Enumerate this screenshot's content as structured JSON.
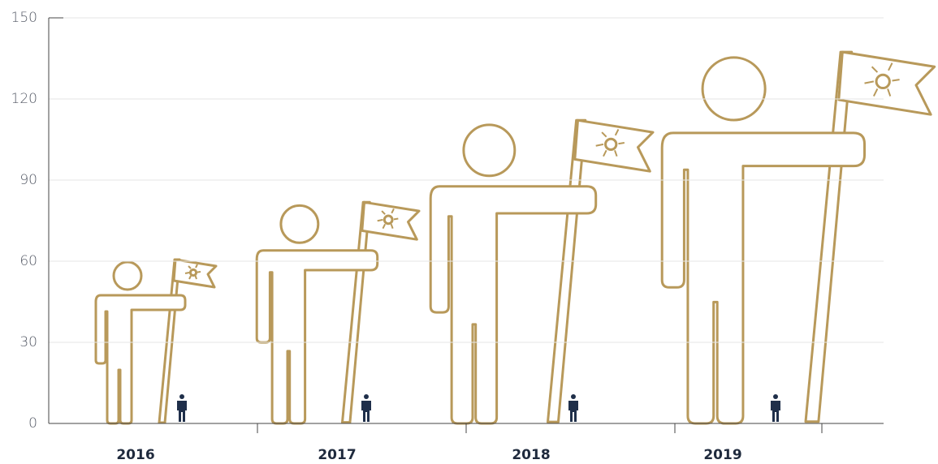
{
  "chart_data": {
    "type": "pictograph",
    "categories": [
      "2016",
      "2017",
      "2018",
      "2019"
    ],
    "values": [
      60,
      81,
      111,
      136
    ],
    "color": "#b8995a",
    "ylim": [
      0,
      150
    ],
    "yticks": [
      0,
      30,
      60,
      90,
      120,
      150
    ],
    "grid": true
  }
}
